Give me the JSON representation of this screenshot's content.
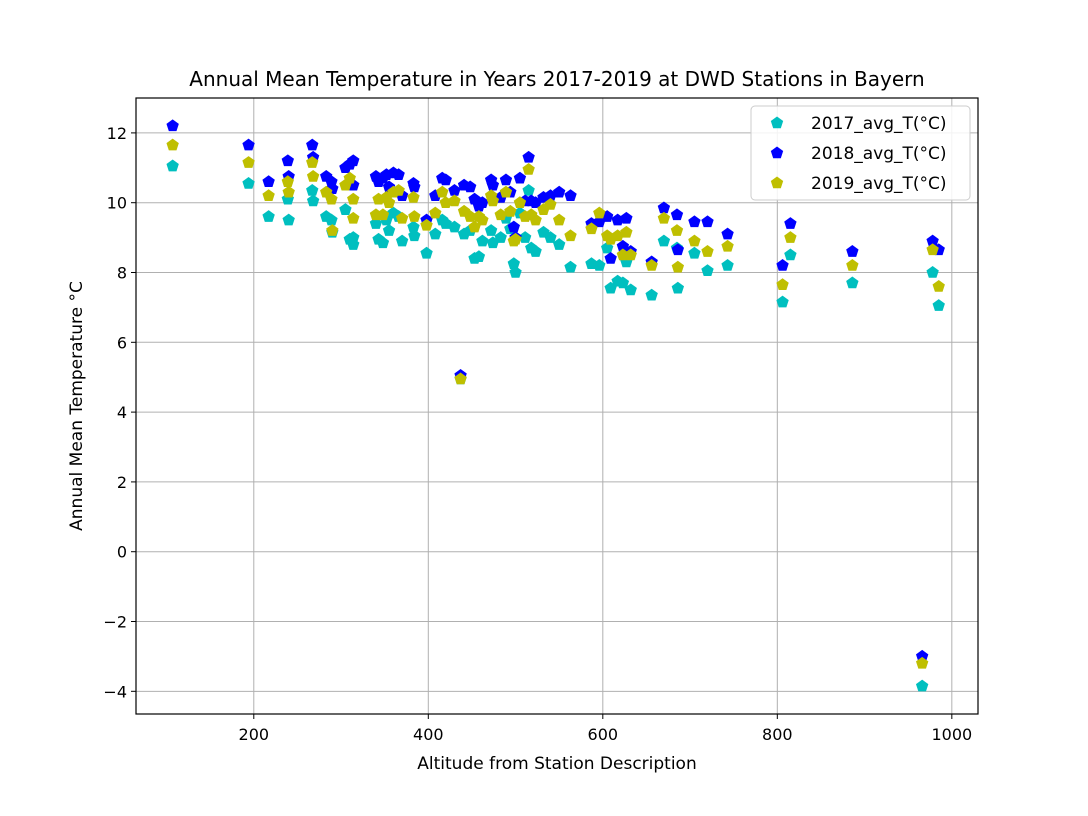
{
  "chart_data": {
    "type": "scatter",
    "title": "Annual Mean Temperature in Years 2017-2019 at DWD Stations in Bayern",
    "xlabel": "Altitude from Station Description",
    "ylabel": "Annual Mean Temperature °C",
    "xlim": [
      65,
      1030
    ],
    "ylim": [
      -4.65,
      13.0
    ],
    "xticks": [
      200,
      400,
      600,
      800,
      1000
    ],
    "xtick_labels": [
      "200",
      "400",
      "600",
      "800",
      "1000"
    ],
    "yticks": [
      -4,
      -2,
      0,
      2,
      4,
      6,
      8,
      10,
      12
    ],
    "ytick_labels": [
      "−4",
      "−2",
      "0",
      "2",
      "4",
      "6",
      "8",
      "10",
      "12"
    ],
    "grid": true,
    "legend_position": "top-right",
    "marker": "pentagon",
    "series": [
      {
        "name": "2017_avg_T(°C)",
        "color": "#00bfbf",
        "points": [
          [
            107,
            11.05
          ],
          [
            194,
            10.55
          ],
          [
            217,
            9.6
          ],
          [
            239,
            10.1
          ],
          [
            240,
            9.5
          ],
          [
            267,
            10.35
          ],
          [
            268,
            10.05
          ],
          [
            283,
            9.6
          ],
          [
            289,
            9.5
          ],
          [
            290,
            9.15
          ],
          [
            305,
            9.8
          ],
          [
            310,
            8.95
          ],
          [
            314,
            9.0
          ],
          [
            314,
            8.8
          ],
          [
            340,
            9.4
          ],
          [
            343,
            8.95
          ],
          [
            348,
            8.85
          ],
          [
            352,
            9.5
          ],
          [
            355,
            9.2
          ],
          [
            360,
            9.7
          ],
          [
            366,
            9.6
          ],
          [
            370,
            8.9
          ],
          [
            383,
            9.3
          ],
          [
            384,
            9.05
          ],
          [
            398,
            8.55
          ],
          [
            408,
            9.1
          ],
          [
            416,
            9.5
          ],
          [
            420,
            9.4
          ],
          [
            430,
            9.3
          ],
          [
            437,
            4.95
          ],
          [
            441,
            9.1
          ],
          [
            448,
            9.2
          ],
          [
            453,
            8.4
          ],
          [
            458,
            8.45
          ],
          [
            462,
            8.9
          ],
          [
            472,
            9.2
          ],
          [
            474,
            8.85
          ],
          [
            483,
            9.0
          ],
          [
            489,
            9.55
          ],
          [
            494,
            9.25
          ],
          [
            498,
            8.25
          ],
          [
            500,
            8.0
          ],
          [
            505,
            9.7
          ],
          [
            511,
            9.0
          ],
          [
            515,
            10.35
          ],
          [
            518,
            8.7
          ],
          [
            523,
            8.6
          ],
          [
            532,
            9.15
          ],
          [
            540,
            9.0
          ],
          [
            550,
            8.8
          ],
          [
            563,
            8.15
          ],
          [
            587,
            8.25
          ],
          [
            596,
            8.2
          ],
          [
            605,
            8.7
          ],
          [
            609,
            7.55
          ],
          [
            617,
            7.75
          ],
          [
            623,
            7.7
          ],
          [
            627,
            8.3
          ],
          [
            632,
            7.5
          ],
          [
            656,
            7.35
          ],
          [
            670,
            8.9
          ],
          [
            685,
            8.7
          ],
          [
            686,
            7.55
          ],
          [
            705,
            8.55
          ],
          [
            720,
            8.05
          ],
          [
            743,
            8.2
          ],
          [
            806,
            7.15
          ],
          [
            815,
            8.5
          ],
          [
            886,
            7.7
          ],
          [
            966,
            -3.85
          ],
          [
            978,
            8.0
          ],
          [
            985,
            7.05
          ]
        ]
      },
      {
        "name": "2018_avg_T(°C)",
        "color": "#0000ff",
        "points": [
          [
            107,
            12.2
          ],
          [
            194,
            11.65
          ],
          [
            217,
            10.6
          ],
          [
            239,
            11.2
          ],
          [
            240,
            10.75
          ],
          [
            267,
            11.65
          ],
          [
            268,
            11.3
          ],
          [
            283,
            10.75
          ],
          [
            289,
            10.6
          ],
          [
            290,
            10.4
          ],
          [
            305,
            11.0
          ],
          [
            310,
            11.1
          ],
          [
            314,
            11.2
          ],
          [
            314,
            10.5
          ],
          [
            340,
            10.75
          ],
          [
            343,
            10.6
          ],
          [
            348,
            10.7
          ],
          [
            352,
            10.8
          ],
          [
            355,
            10.45
          ],
          [
            360,
            10.85
          ],
          [
            366,
            10.8
          ],
          [
            370,
            10.2
          ],
          [
            383,
            10.55
          ],
          [
            384,
            10.45
          ],
          [
            398,
            9.5
          ],
          [
            408,
            10.2
          ],
          [
            416,
            10.7
          ],
          [
            420,
            10.65
          ],
          [
            430,
            10.35
          ],
          [
            437,
            5.05
          ],
          [
            441,
            10.5
          ],
          [
            448,
            10.45
          ],
          [
            453,
            10.1
          ],
          [
            458,
            9.9
          ],
          [
            462,
            10.0
          ],
          [
            472,
            10.65
          ],
          [
            474,
            10.5
          ],
          [
            483,
            10.15
          ],
          [
            489,
            10.65
          ],
          [
            494,
            10.3
          ],
          [
            498,
            9.3
          ],
          [
            500,
            9.0
          ],
          [
            505,
            10.7
          ],
          [
            511,
            10.05
          ],
          [
            515,
            11.3
          ],
          [
            518,
            10.05
          ],
          [
            523,
            10.0
          ],
          [
            532,
            10.15
          ],
          [
            540,
            10.2
          ],
          [
            550,
            10.3
          ],
          [
            563,
            10.2
          ],
          [
            587,
            9.4
          ],
          [
            596,
            9.45
          ],
          [
            605,
            9.6
          ],
          [
            609,
            8.4
          ],
          [
            617,
            9.5
          ],
          [
            623,
            8.75
          ],
          [
            627,
            9.55
          ],
          [
            632,
            8.6
          ],
          [
            656,
            8.3
          ],
          [
            670,
            9.85
          ],
          [
            685,
            9.65
          ],
          [
            686,
            8.65
          ],
          [
            705,
            9.45
          ],
          [
            720,
            9.45
          ],
          [
            743,
            9.1
          ],
          [
            806,
            8.2
          ],
          [
            815,
            9.4
          ],
          [
            886,
            8.6
          ],
          [
            966,
            -3.0
          ],
          [
            978,
            8.9
          ],
          [
            985,
            8.65
          ]
        ]
      },
      {
        "name": "2019_avg_T(°C)",
        "color": "#bfbf00",
        "points": [
          [
            107,
            11.65
          ],
          [
            194,
            11.15
          ],
          [
            217,
            10.2
          ],
          [
            239,
            10.6
          ],
          [
            240,
            10.3
          ],
          [
            267,
            11.15
          ],
          [
            268,
            10.75
          ],
          [
            283,
            10.3
          ],
          [
            289,
            10.1
          ],
          [
            290,
            9.2
          ],
          [
            305,
            10.5
          ],
          [
            310,
            10.7
          ],
          [
            314,
            10.1
          ],
          [
            314,
            9.55
          ],
          [
            340,
            9.65
          ],
          [
            343,
            10.1
          ],
          [
            348,
            9.65
          ],
          [
            352,
            10.15
          ],
          [
            355,
            10.0
          ],
          [
            360,
            10.3
          ],
          [
            366,
            10.35
          ],
          [
            370,
            9.55
          ],
          [
            383,
            10.15
          ],
          [
            384,
            9.6
          ],
          [
            398,
            9.35
          ],
          [
            408,
            9.7
          ],
          [
            416,
            10.3
          ],
          [
            420,
            10.0
          ],
          [
            430,
            10.05
          ],
          [
            437,
            4.95
          ],
          [
            441,
            9.75
          ],
          [
            448,
            9.6
          ],
          [
            453,
            9.3
          ],
          [
            458,
            9.6
          ],
          [
            462,
            9.5
          ],
          [
            472,
            10.2
          ],
          [
            474,
            10.05
          ],
          [
            483,
            9.65
          ],
          [
            489,
            10.3
          ],
          [
            494,
            9.75
          ],
          [
            498,
            8.9
          ],
          [
            500,
            8.95
          ],
          [
            505,
            10.0
          ],
          [
            511,
            9.6
          ],
          [
            515,
            10.95
          ],
          [
            518,
            9.65
          ],
          [
            523,
            9.5
          ],
          [
            532,
            9.8
          ],
          [
            540,
            9.95
          ],
          [
            550,
            9.5
          ],
          [
            563,
            9.05
          ],
          [
            587,
            9.25
          ],
          [
            596,
            9.7
          ],
          [
            605,
            9.05
          ],
          [
            609,
            8.95
          ],
          [
            617,
            9.05
          ],
          [
            623,
            8.5
          ],
          [
            627,
            9.15
          ],
          [
            632,
            8.5
          ],
          [
            656,
            8.2
          ],
          [
            670,
            9.55
          ],
          [
            685,
            9.2
          ],
          [
            686,
            8.15
          ],
          [
            705,
            8.9
          ],
          [
            720,
            8.6
          ],
          [
            743,
            8.75
          ],
          [
            806,
            7.65
          ],
          [
            815,
            9.0
          ],
          [
            886,
            8.2
          ],
          [
            966,
            -3.2
          ],
          [
            978,
            8.65
          ],
          [
            985,
            7.6
          ]
        ]
      }
    ]
  }
}
